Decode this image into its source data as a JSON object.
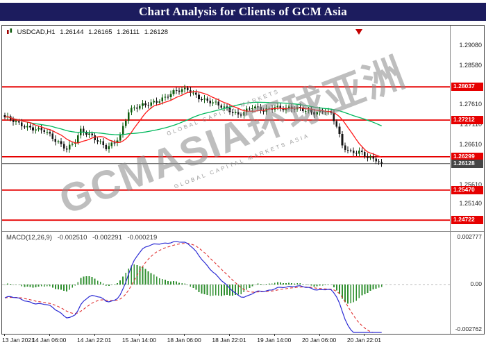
{
  "title_bar": {
    "title": "Chart Analysis for Clients of GCM Asia"
  },
  "quote_bar": {
    "symbol": "USDCAD,H1",
    "open": "1.26144",
    "high": "1.26165",
    "low": "1.26111",
    "close": "1.26128"
  },
  "watermark": {
    "sub1": "GLOBAL CAPITAL MARKETS",
    "brand": "GCMASIA环球亚洲",
    "sub2": "GLOBAL CAPITAL MARKETS ASIA"
  },
  "colors": {
    "title_bg": "#1c1c5e",
    "level": "#e60000",
    "current": "#454545",
    "bull": "#0d5c0d",
    "bear": "#151515",
    "ma_fast": "#ff1a1a",
    "ma_slow": "#00b85c",
    "macd": "#2a2ad4",
    "signal": "#e03030",
    "hist": "#2f8f2f"
  },
  "chart_data": {
    "type": "candlestick+macd",
    "symbol": "USDCAD",
    "timeframe": "H1",
    "bars": 135,
    "price_range": [
      1.2445,
      1.2956
    ],
    "current_price": 1.26128,
    "current_price_label": "1.26128",
    "level_labels": [
      "1.28037",
      "1.27212",
      "1.26299",
      "1.25470",
      "1.24722"
    ],
    "price_axis_ticks": [
      "1.29080",
      "1.28580",
      "1.27610",
      "1.27110",
      "1.26610",
      "1.25610",
      "1.25140"
    ],
    "close_waypoints": [
      [
        0,
        1.2726
      ],
      [
        5,
        1.2712
      ],
      [
        10,
        1.2702
      ],
      [
        14,
        1.2694
      ],
      [
        18,
        1.2668
      ],
      [
        22,
        1.2652
      ],
      [
        25,
        1.2672
      ],
      [
        27,
        1.2695
      ],
      [
        30,
        1.2682
      ],
      [
        33,
        1.2668
      ],
      [
        36,
        1.2655
      ],
      [
        39,
        1.2668
      ],
      [
        41,
        1.2684
      ],
      [
        44,
        1.274
      ],
      [
        48,
        1.2756
      ],
      [
        52,
        1.2766
      ],
      [
        57,
        1.2776
      ],
      [
        61,
        1.2792
      ],
      [
        65,
        1.28
      ],
      [
        68,
        1.2784
      ],
      [
        71,
        1.277
      ],
      [
        74,
        1.2762
      ],
      [
        78,
        1.2752
      ],
      [
        81,
        1.2744
      ],
      [
        83,
        1.2736
      ],
      [
        86,
        1.2744
      ],
      [
        88,
        1.2752
      ],
      [
        92,
        1.2744
      ],
      [
        96,
        1.2757
      ],
      [
        100,
        1.275
      ],
      [
        105,
        1.2747
      ],
      [
        110,
        1.2742
      ],
      [
        114,
        1.2746
      ],
      [
        116,
        1.2735
      ],
      [
        118,
        1.2704
      ],
      [
        120,
        1.2655
      ],
      [
        123,
        1.2642
      ],
      [
        126,
        1.2646
      ],
      [
        129,
        1.263
      ],
      [
        131,
        1.2622
      ],
      [
        134,
        1.26128
      ]
    ],
    "ma_periods": {
      "fast": 10,
      "slow": 45
    },
    "time_labels": [
      {
        "text": "13 Jan 2021",
        "bar": 0
      },
      {
        "text": "14 Jan 06:00",
        "bar": 16
      },
      {
        "text": "14 Jan 22:01",
        "bar": 32
      },
      {
        "text": "15 Jan 14:00",
        "bar": 48
      },
      {
        "text": "18 Jan 06:00",
        "bar": 64
      },
      {
        "text": "18 Jan 22:01",
        "bar": 80
      },
      {
        "text": "19 Jan 14:00",
        "bar": 96
      },
      {
        "text": "20 Jan 06:00",
        "bar": 112
      },
      {
        "text": "20 Jan 22:01",
        "bar": 128
      }
    ],
    "macd": {
      "label": "MACD(12,26,9)",
      "values": [
        "-0.002510",
        "-0.002291",
        "-0.000219"
      ],
      "params": [
        12,
        26,
        9
      ],
      "scale_max": "0.002777",
      "scale_zero": "0.00",
      "scale_min": "-0.002762"
    }
  }
}
